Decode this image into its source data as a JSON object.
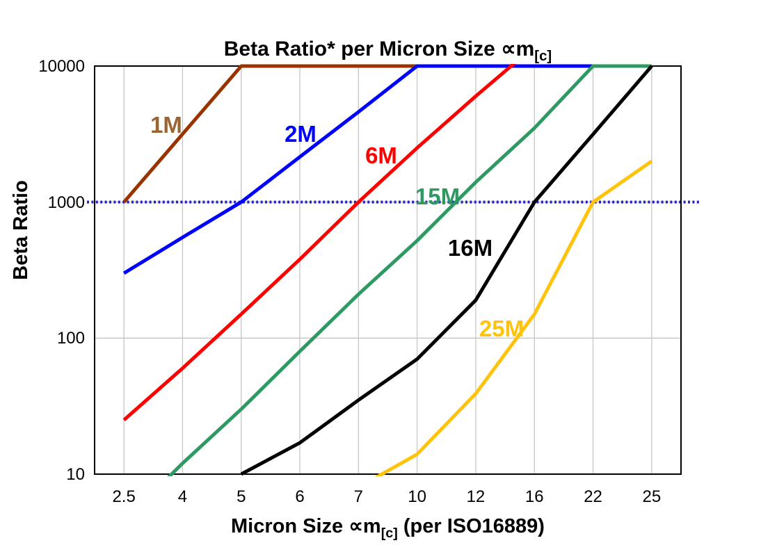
{
  "title": {
    "text": "Beta Ratio* per Micron Size ∝m[c]",
    "main": "Beta Ratio* per Micron Size ∝m",
    "sub": "[c]"
  },
  "axes": {
    "y_title": "Beta Ratio",
    "x_title_main": "Micron Size ∝m",
    "x_title_sub": "[c]",
    "x_title_post": " (per ISO16889)"
  },
  "chart_data": {
    "type": "line",
    "title": "Beta Ratio* per Micron Size ∝m[c]",
    "xlabel": "Micron Size ∝m[c] (per ISO16889)",
    "ylabel": "Beta Ratio",
    "x_categories": [
      "2.5",
      "4",
      "5",
      "6",
      "7",
      "10",
      "12",
      "16",
      "22",
      "25"
    ],
    "y_scale": "log",
    "y_ticks": [
      10,
      100,
      1000,
      10000
    ],
    "y_tick_labels": [
      "10",
      "100",
      "1000",
      "10000"
    ],
    "ylim": [
      10,
      10000
    ],
    "grid": true,
    "gridline_color": "#c6c6c6",
    "reference_line": {
      "y": 1000,
      "style": "dotted",
      "color": "#2222cc"
    },
    "series": [
      {
        "name": "1M",
        "color": "#993300",
        "label_color": "#996633",
        "label_pos": [
          239,
          180
        ],
        "values": [
          1000,
          3160,
          10000,
          10000,
          10000,
          10000,
          10000,
          10000,
          10000,
          10000
        ]
      },
      {
        "name": "2M",
        "color": "#0000ff",
        "label_color": "#0000ff",
        "label_pos": [
          432,
          193
        ],
        "values": [
          300,
          550,
          1000,
          2150,
          4600,
          10000,
          10000,
          10000,
          10000,
          10000
        ]
      },
      {
        "name": "6M",
        "color": "#ff0000",
        "label_color": "#ff0000",
        "label_pos": [
          548,
          224
        ],
        "values": [
          25,
          60,
          150,
          380,
          1000,
          2500,
          6000,
          14000,
          null,
          null
        ]
      },
      {
        "name": "15M",
        "color": "#2f9962",
        "label_color": "#2f9962",
        "label_pos": [
          629,
          283
        ],
        "values": [
          4.5,
          12,
          30,
          80,
          210,
          520,
          1400,
          3500,
          10000,
          10000
        ]
      },
      {
        "name": "16M",
        "color": "#000000",
        "label_color": "#000000",
        "label_pos": [
          676,
          357
        ],
        "values": [
          null,
          null,
          10,
          17,
          35,
          70,
          190,
          1000,
          3150,
          10000
        ]
      },
      {
        "name": "25M",
        "color": "#ffc30b",
        "label_color": "#ffc30b",
        "label_pos": [
          721,
          473
        ],
        "values": [
          null,
          null,
          null,
          null,
          8,
          14,
          39,
          150,
          1000,
          2000
        ]
      }
    ]
  }
}
